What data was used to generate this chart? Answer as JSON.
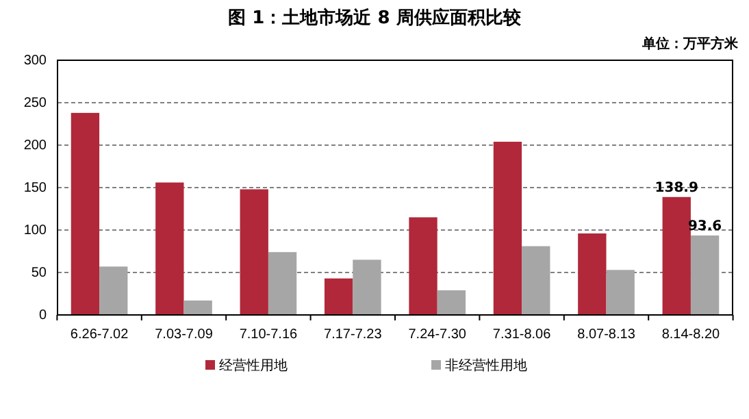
{
  "chart_data": {
    "type": "bar",
    "title": "图 1：土地市场近 8 周供应面积比较",
    "annotations": [
      "单位：万平方米"
    ],
    "categories": [
      "6.26-7.02",
      "7.03-7.09",
      "7.10-7.16",
      "7.17-7.23",
      "7.24-7.30",
      "7.31-8.06",
      "8.07-8.13",
      "8.14-8.20"
    ],
    "series": [
      {
        "name": "经营性用地",
        "color": "#b0283a",
        "values": [
          238,
          156,
          148,
          43,
          115,
          204,
          96,
          138.9
        ],
        "value_labels": [
          null,
          null,
          null,
          null,
          null,
          null,
          null,
          "138.9"
        ]
      },
      {
        "name": "非经营性用地",
        "color": "#a6a6a6",
        "values": [
          57,
          17,
          74,
          65,
          29,
          81,
          53,
          93.6
        ],
        "value_labels": [
          null,
          null,
          null,
          null,
          null,
          null,
          null,
          "93.6"
        ]
      }
    ],
    "ylim": [
      0,
      300
    ],
    "yticks": [
      0,
      50,
      100,
      150,
      200,
      250,
      300
    ],
    "grid": "y",
    "legend": "bottom"
  }
}
